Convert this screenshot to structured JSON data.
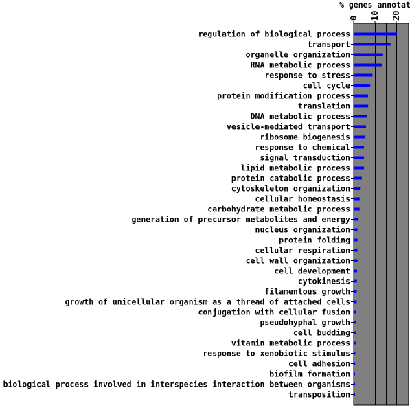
{
  "chart_data": {
    "type": "bar",
    "orientation": "horizontal",
    "title": "",
    "xlabel": "% genes annotat",
    "ylabel": "",
    "xlim": [
      0,
      25
    ],
    "xticks": [
      "0",
      "10",
      "20"
    ],
    "grid": true,
    "legend": "none",
    "colors": {
      "bar": "#0000ff",
      "plot_bg": "#808080",
      "grid": "#000000"
    },
    "categories": [
      "regulation of biological process",
      "transport",
      "organelle organization",
      "RNA metabolic process",
      "response to stress",
      "cell cycle",
      "protein modification process",
      "translation",
      "DNA metabolic process",
      "vesicle-mediated transport",
      "ribosome biogenesis",
      "response to chemical",
      "signal transduction",
      "lipid metabolic process",
      "protein catabolic process",
      "cytoskeleton organization",
      "cellular homeostasis",
      "carbohydrate metabolic process",
      "generation of precursor metabolites and energy",
      "nucleus organization",
      "protein folding",
      "cellular respiration",
      "cell wall organization",
      "cell development",
      "cytokinesis",
      "filamentous growth",
      "growth of unicellular organism as a thread of attached cells",
      "conjugation with cellular fusion",
      "pseudohyphal growth",
      "cell budding",
      "vitamin metabolic process",
      "response to xenobiotic stimulus",
      "cell adhesion",
      "biofilm formation",
      "biological process involved in interspecies interaction between organisms",
      "transposition"
    ],
    "values": [
      20,
      17,
      13.5,
      13,
      8.5,
      7.5,
      6.5,
      6.5,
      6,
      5.5,
      5,
      4.5,
      4.5,
      4.5,
      3.5,
      3,
      2.5,
      2.5,
      2,
      1.5,
      1.5,
      1.5,
      1.5,
      1.3,
      1.2,
      1.1,
      1.1,
      1.0,
      0.8,
      0.7,
      0.6,
      0.5,
      0.4,
      0.3,
      0.2,
      0.1
    ]
  }
}
